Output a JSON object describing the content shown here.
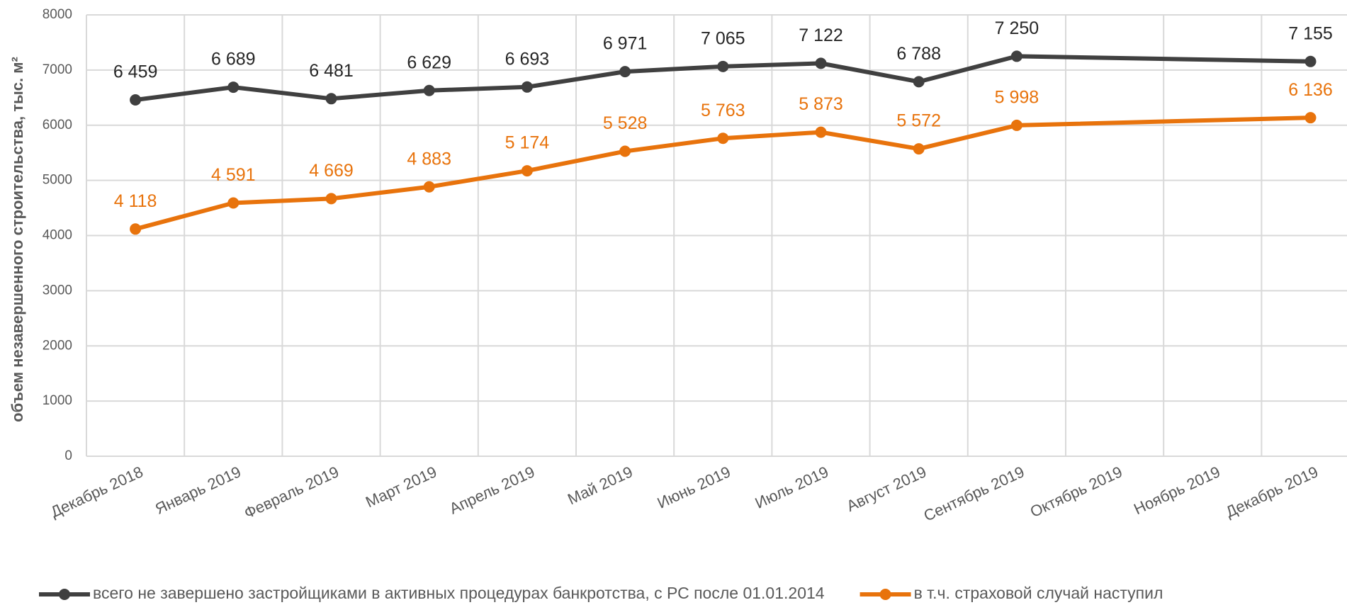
{
  "chart_data": {
    "type": "line",
    "y_label": "объем незавершенного строительства, тыс. м²",
    "categories": [
      "Декабрь 2018",
      "Январь 2019",
      "Февраль 2019",
      "Март 2019",
      "Апрель 2019",
      "Май 2019",
      "Июнь 2019",
      "Июль 2019",
      "Август 2019",
      "Сентябрь 2019",
      "Октябрь 2019",
      "Ноябрь 2019",
      "Декабрь 2019"
    ],
    "series": [
      {
        "name": "всего не завершено застройщиками в активных процедурах банкротства, с РС после 01.01.2014",
        "color": "#404040",
        "values": [
          6459,
          6689,
          6481,
          6629,
          6693,
          6971,
          7065,
          7122,
          6788,
          7250,
          null,
          null,
          7155
        ],
        "value_labels": [
          "6 459",
          "6 689",
          "6 481",
          "6 629",
          "6 693",
          "6 971",
          "7 065",
          "7 122",
          "6 788",
          "7 250",
          null,
          null,
          "7 155"
        ]
      },
      {
        "name": "в т.ч. страховой случай наступил",
        "color": "#e8730c",
        "values": [
          4118,
          4591,
          4669,
          4883,
          5174,
          5528,
          5763,
          5873,
          5572,
          5998,
          null,
          null,
          6136
        ],
        "value_labels": [
          "4 118",
          "4 591",
          "4 669",
          "4 883",
          "5 174",
          "5 528",
          "5 763",
          "5 873",
          "5 572",
          "5 998",
          null,
          null,
          "6 136"
        ]
      }
    ],
    "ylim": [
      0,
      8000
    ],
    "yticks": [
      0,
      1000,
      2000,
      3000,
      4000,
      5000,
      6000,
      7000,
      8000
    ],
    "grid": true,
    "connect_gaps": true,
    "legend": "bottom"
  }
}
